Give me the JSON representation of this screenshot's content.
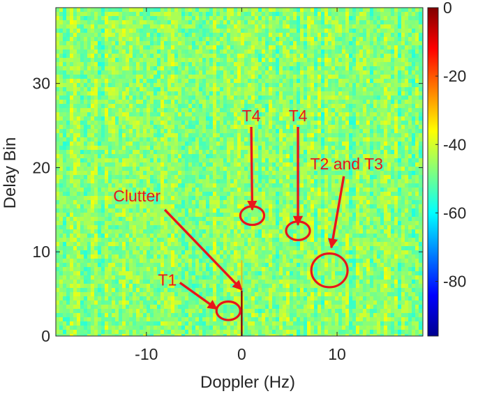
{
  "chart_data": {
    "type": "heatmap",
    "xlabel": "Doppler  (Hz)",
    "ylabel": "Delay Bin",
    "xlim": [
      -19.5,
      19.0
    ],
    "ylim": [
      0,
      39
    ],
    "x_ticks": [
      -10,
      0,
      10
    ],
    "x_tick_labels": [
      "-10",
      "0",
      "10"
    ],
    "y_ticks": [
      0,
      10,
      20,
      30
    ],
    "y_tick_labels": [
      "0",
      "10",
      "20",
      "30"
    ],
    "colorbar": {
      "ticks": [
        0,
        -20,
        -40,
        -60,
        -80
      ],
      "tick_labels": [
        "0",
        "-20",
        "-40",
        "-60",
        "-80"
      ],
      "range": [
        -96,
        0
      ],
      "colormap": "jet"
    },
    "background_level_db": -47,
    "clutter_line": {
      "x": 0,
      "y_from": 0,
      "y_to": 9
    },
    "annotations": [
      {
        "label": "Clutter",
        "text_xy": [
          -11,
          16
        ],
        "arrow_to": [
          0,
          5.5
        ]
      },
      {
        "label": "T1",
        "text_xy": [
          -7.8,
          6
        ],
        "arrow_to": [
          -2.6,
          3.2
        ],
        "circle_center": [
          -1.4,
          3
        ],
        "circle_rx": 1.25,
        "circle_ry": 1.1
      },
      {
        "label": "T4",
        "text_xy": [
          1.0,
          25.5
        ],
        "arrow_to": [
          1.1,
          15
        ],
        "circle_center": [
          1.1,
          14.3
        ],
        "circle_rx": 1.25,
        "circle_ry": 1.1
      },
      {
        "label": "T4",
        "text_xy": [
          5.9,
          25.5
        ],
        "arrow_to": [
          5.9,
          13.2
        ],
        "circle_center": [
          5.9,
          12.5
        ],
        "circle_rx": 1.25,
        "circle_ry": 1.1
      },
      {
        "label": "T2 and T3",
        "text_xy": [
          11.0,
          19.8
        ],
        "arrow_to": [
          9.4,
          10.5
        ],
        "circle_center": [
          9.2,
          7.8
        ],
        "circle_rx": 1.9,
        "circle_ry": 2.0
      }
    ],
    "colors": {
      "annotation": "#e8141c",
      "axis": "#262626"
    }
  }
}
